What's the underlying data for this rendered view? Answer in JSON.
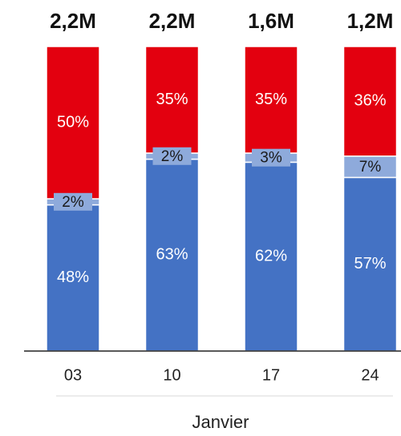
{
  "chart_data": {
    "type": "stacked_bar_percent",
    "categories": [
      "03",
      "10",
      "17",
      "24"
    ],
    "totals": [
      2200000,
      2200000,
      1600000,
      1200000
    ],
    "total_labels": [
      "2,2M",
      "2,2M",
      "1,6M",
      "1,2M"
    ],
    "xlabel": "Janvier",
    "ylim": [
      0,
      100
    ],
    "series": [
      {
        "color": "#4472c4",
        "values": [
          48,
          63,
          62,
          57
        ],
        "value_labels": [
          "48%",
          "63%",
          "62%",
          "57%"
        ]
      },
      {
        "color": "#8eaadb",
        "values": [
          2,
          2,
          3,
          7
        ],
        "value_labels": [
          "2%",
          "2%",
          "3%",
          "7%"
        ]
      },
      {
        "color": "#e3000f",
        "values": [
          50,
          35,
          35,
          36
        ],
        "value_labels": [
          "50%",
          "35%",
          "35%",
          "36%"
        ]
      }
    ]
  }
}
